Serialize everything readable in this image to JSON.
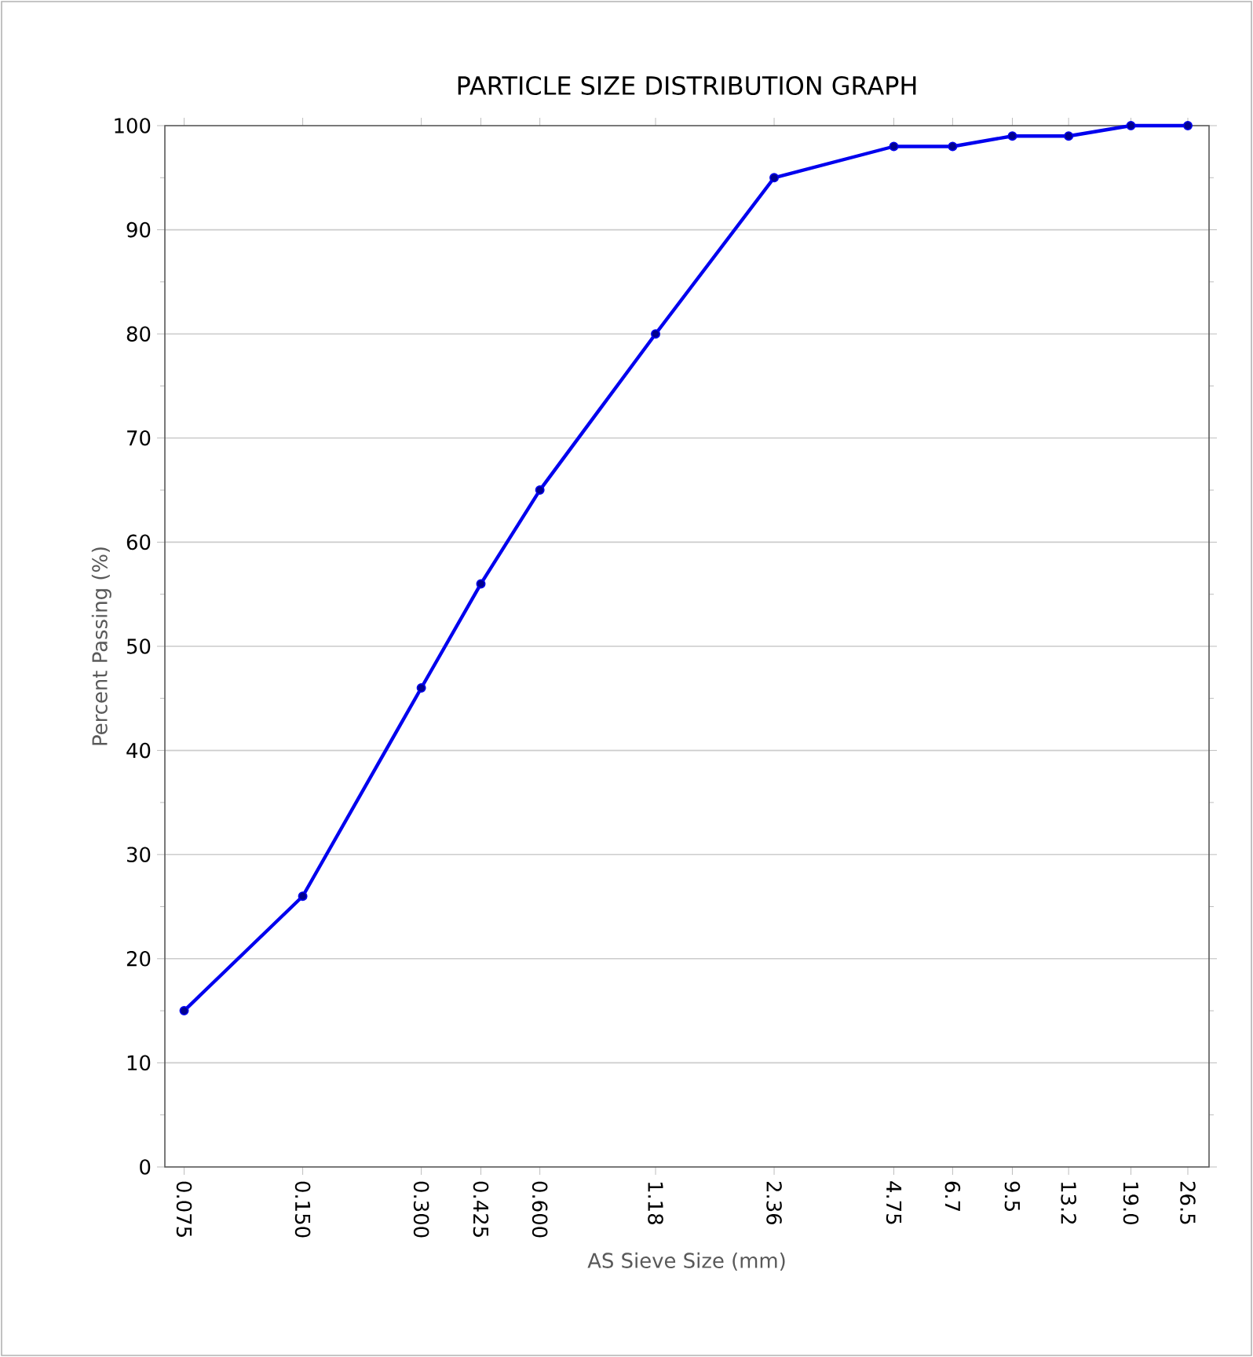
{
  "chart_data": {
    "type": "line",
    "title": "PARTICLE SIZE DISTRIBUTION GRAPH",
    "xlabel": "AS Sieve Size (mm)",
    "ylabel": "Percent Passing (%)",
    "x": [
      0.075,
      0.15,
      0.3,
      0.425,
      0.6,
      1.18,
      2.36,
      4.75,
      6.7,
      9.5,
      13.2,
      19.0,
      26.5
    ],
    "series": [
      {
        "color": "#0000ee",
        "values": [
          15,
          26,
          46,
          56,
          65,
          80,
          95,
          98,
          98,
          99,
          99,
          100,
          100
        ]
      }
    ],
    "log": "x",
    "xlim": [
      0.067,
      30
    ],
    "xticks": [
      {
        "value": 0.075,
        "label": "0.075"
      },
      {
        "value": 0.15,
        "label": "0.150"
      },
      {
        "value": 0.3,
        "label": "0.300"
      },
      {
        "value": 0.425,
        "label": "0.425"
      },
      {
        "value": 0.6,
        "label": "0.600"
      },
      {
        "value": 1.18,
        "label": "1.18"
      },
      {
        "value": 2.36,
        "label": "2.36"
      },
      {
        "value": 4.75,
        "label": "4.75"
      },
      {
        "value": 6.7,
        "label": "6.7"
      },
      {
        "value": 9.5,
        "label": "9.5"
      },
      {
        "value": 13.2,
        "label": "13.2"
      },
      {
        "value": 19.0,
        "label": "19.0"
      },
      {
        "value": 26.5,
        "label": "26.5"
      }
    ],
    "ylim": [
      0,
      100
    ],
    "yticks": [
      0,
      10,
      20,
      30,
      40,
      50,
      60,
      70,
      80,
      90,
      100
    ],
    "grid": "y",
    "marker": "circle",
    "line_style": "solid"
  }
}
